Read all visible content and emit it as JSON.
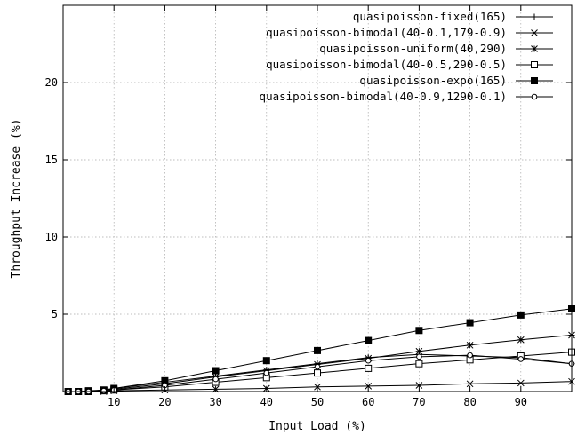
{
  "chart_data": {
    "type": "line",
    "title": "",
    "xlabel": "Input Load (%)",
    "ylabel": "Throughput Increase (%)",
    "xlim": [
      0,
      100
    ],
    "ylim": [
      0,
      25
    ],
    "xticks": [
      10,
      20,
      30,
      40,
      50,
      60,
      70,
      80,
      90
    ],
    "yticks": [
      5,
      10,
      15,
      20
    ],
    "grid": true,
    "legend_position": "top-right",
    "x": [
      1,
      3,
      5,
      8,
      10,
      20,
      30,
      40,
      50,
      60,
      70,
      80,
      90,
      100
    ],
    "series": [
      {
        "name": "quasipoisson-fixed(165)",
        "marker": "plus",
        "values": [
          0,
          0,
          0,
          0.1,
          0.2,
          0.6,
          1.0,
          1.4,
          1.8,
          2.2,
          2.4,
          2.3,
          2.2,
          1.8
        ]
      },
      {
        "name": "quasipoisson-bimodal(40-0.1,179-0.9)",
        "marker": "cross",
        "values": [
          0,
          0,
          0,
          0,
          0.05,
          0.1,
          0.15,
          0.2,
          0.3,
          0.35,
          0.4,
          0.5,
          0.55,
          0.65
        ]
      },
      {
        "name": "quasipoisson-uniform(40,290)",
        "marker": "star",
        "values": [
          0,
          0,
          0,
          0.1,
          0.15,
          0.5,
          0.95,
          1.35,
          1.75,
          2.15,
          2.6,
          3.0,
          3.35,
          3.65
        ]
      },
      {
        "name": "quasipoisson-bimodal(40-0.5,290-0.5)",
        "marker": "open-square",
        "values": [
          0,
          0,
          0,
          0.05,
          0.1,
          0.3,
          0.6,
          0.9,
          1.2,
          1.5,
          1.8,
          2.05,
          2.3,
          2.55
        ]
      },
      {
        "name": "quasipoisson-expo(165)",
        "marker": "filled-square",
        "values": [
          0,
          0,
          0.05,
          0.1,
          0.2,
          0.7,
          1.35,
          2.0,
          2.65,
          3.3,
          3.95,
          4.45,
          4.95,
          5.35
        ]
      },
      {
        "name": "quasipoisson-bimodal(40-0.9,1290-0.1)",
        "marker": "circle",
        "values": [
          0,
          0,
          0,
          0.05,
          0.1,
          0.4,
          0.8,
          1.2,
          1.6,
          2.0,
          2.25,
          2.35,
          2.1,
          1.8
        ]
      }
    ]
  }
}
